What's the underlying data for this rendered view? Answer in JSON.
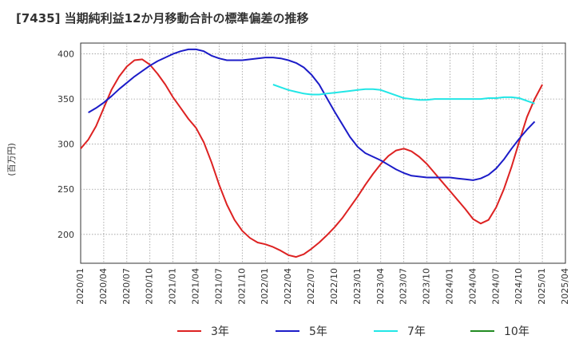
{
  "title": "[7435]  当期純利益12か月移動合計の標準偏差の推移",
  "chart_data": {
    "type": "line",
    "ylabel": "(百万円)",
    "ylim": [
      168,
      412
    ],
    "yticks": [
      200,
      250,
      300,
      350,
      400
    ],
    "xlim": [
      "2020-01",
      "2025-04"
    ],
    "xticks": [
      "2020/01",
      "2020/04",
      "2020/07",
      "2020/10",
      "2021/01",
      "2021/04",
      "2021/07",
      "2021/10",
      "2022/01",
      "2022/04",
      "2022/07",
      "2022/10",
      "2023/01",
      "2023/04",
      "2023/07",
      "2023/10",
      "2024/01",
      "2024/04",
      "2024/07",
      "2024/10",
      "2025/01",
      "2025/04"
    ],
    "grid": true,
    "legend_position": "bottom",
    "series": [
      {
        "name": "3年",
        "color": "#dd2222",
        "points": [
          [
            "2020-01",
            295
          ],
          [
            "2020-02",
            305
          ],
          [
            "2020-03",
            320
          ],
          [
            "2020-04",
            340
          ],
          [
            "2020-05",
            360
          ],
          [
            "2020-06",
            375
          ],
          [
            "2020-07",
            386
          ],
          [
            "2020-08",
            393
          ],
          [
            "2020-09",
            394
          ],
          [
            "2020-10",
            388
          ],
          [
            "2020-11",
            378
          ],
          [
            "2020-12",
            366
          ],
          [
            "2021-01",
            352
          ],
          [
            "2021-02",
            340
          ],
          [
            "2021-03",
            328
          ],
          [
            "2021-04",
            318
          ],
          [
            "2021-05",
            302
          ],
          [
            "2021-06",
            280
          ],
          [
            "2021-07",
            255
          ],
          [
            "2021-08",
            233
          ],
          [
            "2021-09",
            216
          ],
          [
            "2021-10",
            204
          ],
          [
            "2021-11",
            196
          ],
          [
            "2021-12",
            191
          ],
          [
            "2022-01",
            189
          ],
          [
            "2022-02",
            186
          ],
          [
            "2022-03",
            182
          ],
          [
            "2022-04",
            177
          ],
          [
            "2022-05",
            175
          ],
          [
            "2022-06",
            178
          ],
          [
            "2022-07",
            184
          ],
          [
            "2022-08",
            191
          ],
          [
            "2022-09",
            199
          ],
          [
            "2022-10",
            208
          ],
          [
            "2022-11",
            218
          ],
          [
            "2022-12",
            230
          ],
          [
            "2023-01",
            242
          ],
          [
            "2023-02",
            255
          ],
          [
            "2023-03",
            267
          ],
          [
            "2023-04",
            278
          ],
          [
            "2023-05",
            287
          ],
          [
            "2023-06",
            293
          ],
          [
            "2023-07",
            295
          ],
          [
            "2023-08",
            292
          ],
          [
            "2023-09",
            286
          ],
          [
            "2023-10",
            278
          ],
          [
            "2023-11",
            268
          ],
          [
            "2023-12",
            258
          ],
          [
            "2024-01",
            248
          ],
          [
            "2024-02",
            238
          ],
          [
            "2024-03",
            228
          ],
          [
            "2024-04",
            217
          ],
          [
            "2024-05",
            212
          ],
          [
            "2024-06",
            216
          ],
          [
            "2024-07",
            230
          ],
          [
            "2024-08",
            250
          ],
          [
            "2024-09",
            275
          ],
          [
            "2024-10",
            303
          ],
          [
            "2024-11",
            330
          ],
          [
            "2024-12",
            350
          ],
          [
            "2025-01",
            366
          ]
        ]
      },
      {
        "name": "5年",
        "color": "#1c1cc8",
        "points": [
          [
            "2020-02",
            335
          ],
          [
            "2020-03",
            340
          ],
          [
            "2020-04",
            346
          ],
          [
            "2020-05",
            353
          ],
          [
            "2020-06",
            361
          ],
          [
            "2020-07",
            368
          ],
          [
            "2020-08",
            375
          ],
          [
            "2020-09",
            381
          ],
          [
            "2020-10",
            387
          ],
          [
            "2020-11",
            392
          ],
          [
            "2020-12",
            396
          ],
          [
            "2021-01",
            400
          ],
          [
            "2021-02",
            403
          ],
          [
            "2021-03",
            405
          ],
          [
            "2021-04",
            405
          ],
          [
            "2021-05",
            403
          ],
          [
            "2021-06",
            398
          ],
          [
            "2021-07",
            395
          ],
          [
            "2021-08",
            393
          ],
          [
            "2021-09",
            393
          ],
          [
            "2021-10",
            393
          ],
          [
            "2021-11",
            394
          ],
          [
            "2021-12",
            395
          ],
          [
            "2022-01",
            396
          ],
          [
            "2022-02",
            396
          ],
          [
            "2022-03",
            395
          ],
          [
            "2022-04",
            393
          ],
          [
            "2022-05",
            390
          ],
          [
            "2022-06",
            385
          ],
          [
            "2022-07",
            377
          ],
          [
            "2022-08",
            366
          ],
          [
            "2022-09",
            351
          ],
          [
            "2022-10",
            336
          ],
          [
            "2022-11",
            322
          ],
          [
            "2022-12",
            308
          ],
          [
            "2023-01",
            297
          ],
          [
            "2023-02",
            290
          ],
          [
            "2023-03",
            286
          ],
          [
            "2023-04",
            282
          ],
          [
            "2023-05",
            277
          ],
          [
            "2023-06",
            272
          ],
          [
            "2023-07",
            268
          ],
          [
            "2023-08",
            265
          ],
          [
            "2023-09",
            264
          ],
          [
            "2023-10",
            263
          ],
          [
            "2023-11",
            263
          ],
          [
            "2023-12",
            263
          ],
          [
            "2024-01",
            263
          ],
          [
            "2024-02",
            262
          ],
          [
            "2024-03",
            261
          ],
          [
            "2024-04",
            260
          ],
          [
            "2024-05",
            262
          ],
          [
            "2024-06",
            266
          ],
          [
            "2024-07",
            273
          ],
          [
            "2024-08",
            283
          ],
          [
            "2024-09",
            295
          ],
          [
            "2024-10",
            306
          ],
          [
            "2024-11",
            316
          ],
          [
            "2024-12",
            325
          ]
        ]
      },
      {
        "name": "7年",
        "color": "#22e6e6",
        "points": [
          [
            "2022-02",
            366
          ],
          [
            "2022-03",
            363
          ],
          [
            "2022-04",
            360
          ],
          [
            "2022-05",
            358
          ],
          [
            "2022-06",
            356
          ],
          [
            "2022-07",
            355
          ],
          [
            "2022-08",
            355
          ],
          [
            "2022-09",
            356
          ],
          [
            "2022-10",
            357
          ],
          [
            "2022-11",
            358
          ],
          [
            "2022-12",
            359
          ],
          [
            "2023-01",
            360
          ],
          [
            "2023-02",
            361
          ],
          [
            "2023-03",
            361
          ],
          [
            "2023-04",
            360
          ],
          [
            "2023-05",
            357
          ],
          [
            "2023-06",
            354
          ],
          [
            "2023-07",
            351
          ],
          [
            "2023-08",
            350
          ],
          [
            "2023-09",
            349
          ],
          [
            "2023-10",
            349
          ],
          [
            "2023-11",
            350
          ],
          [
            "2023-12",
            350
          ],
          [
            "2024-01",
            350
          ],
          [
            "2024-02",
            350
          ],
          [
            "2024-03",
            350
          ],
          [
            "2024-04",
            350
          ],
          [
            "2024-05",
            350
          ],
          [
            "2024-06",
            351
          ],
          [
            "2024-07",
            351
          ],
          [
            "2024-08",
            352
          ],
          [
            "2024-09",
            352
          ],
          [
            "2024-10",
            351
          ],
          [
            "2024-11",
            348
          ],
          [
            "2024-12",
            345
          ]
        ]
      },
      {
        "name": "10年",
        "color": "#228b22",
        "points": []
      }
    ]
  }
}
